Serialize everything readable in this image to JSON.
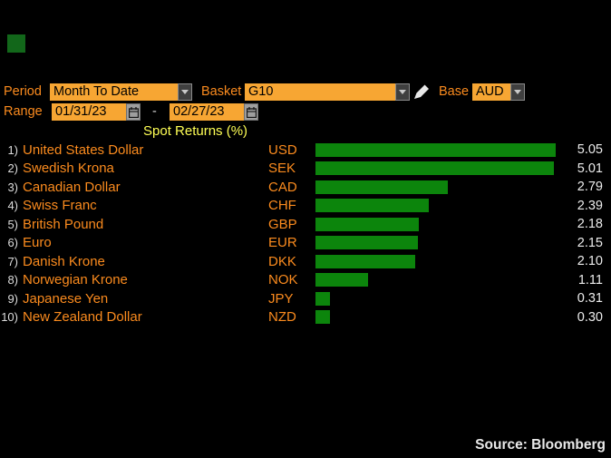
{
  "controls": {
    "period": {
      "label": "Period",
      "value": "Month To Date"
    },
    "basket": {
      "label": "Basket",
      "value": "G10"
    },
    "base": {
      "label": "Base",
      "value": "AUD"
    },
    "range": {
      "label": "Range",
      "start": "01/31/23",
      "separator": "-",
      "end": "02/27/23"
    }
  },
  "chart": {
    "title": "Spot Returns (%)"
  },
  "rows": [
    {
      "rank": "1)",
      "name": "United States Dollar",
      "ticker": "USD",
      "value": 5.05,
      "value_label": "5.05"
    },
    {
      "rank": "2)",
      "name": "Swedish Krona",
      "ticker": "SEK",
      "value": 5.01,
      "value_label": "5.01"
    },
    {
      "rank": "3)",
      "name": "Canadian Dollar",
      "ticker": "CAD",
      "value": 2.79,
      "value_label": "2.79"
    },
    {
      "rank": "4)",
      "name": "Swiss Franc",
      "ticker": "CHF",
      "value": 2.39,
      "value_label": "2.39"
    },
    {
      "rank": "5)",
      "name": "British Pound",
      "ticker": "GBP",
      "value": 2.18,
      "value_label": "2.18"
    },
    {
      "rank": "6)",
      "name": "Euro",
      "ticker": "EUR",
      "value": 2.15,
      "value_label": "2.15"
    },
    {
      "rank": "7)",
      "name": "Danish Krone",
      "ticker": "DKK",
      "value": 2.1,
      "value_label": "2.10"
    },
    {
      "rank": "8)",
      "name": "Norwegian Krone",
      "ticker": "NOK",
      "value": 1.11,
      "value_label": "1.11"
    },
    {
      "rank": "9)",
      "name": "Japanese Yen",
      "ticker": "JPY",
      "value": 0.31,
      "value_label": "0.31"
    },
    {
      "rank": "10)",
      "name": "New Zealand Dollar",
      "ticker": "NZD",
      "value": 0.3,
      "value_label": "0.30"
    }
  ],
  "chart_data": {
    "type": "bar",
    "orientation": "horizontal",
    "title": "Spot Returns (%)",
    "categories": [
      "United States Dollar",
      "Swedish Krona",
      "Canadian Dollar",
      "Swiss Franc",
      "British Pound",
      "Euro",
      "Danish Krone",
      "Norwegian Krone",
      "Japanese Yen",
      "New Zealand Dollar"
    ],
    "tickers": [
      "USD",
      "SEK",
      "CAD",
      "CHF",
      "GBP",
      "EUR",
      "DKK",
      "NOK",
      "JPY",
      "NZD"
    ],
    "values": [
      5.05,
      5.01,
      2.79,
      2.39,
      2.18,
      2.15,
      2.1,
      1.11,
      0.31,
      0.3
    ],
    "xlabel": "",
    "ylabel": "",
    "xlim": [
      0,
      5.05
    ],
    "grid": false,
    "legend": "none",
    "bar_color": "#0c850c"
  },
  "footer": {
    "source": "Source: Bloomberg"
  },
  "colors": {
    "background": "#000000",
    "amber_field": "#f7a633",
    "orange_text": "#fb8b1e",
    "bar_green": "#0c850c",
    "title_yellow": "#ffff55",
    "value_white": "#ececec",
    "indicator_green": "#12671a"
  }
}
